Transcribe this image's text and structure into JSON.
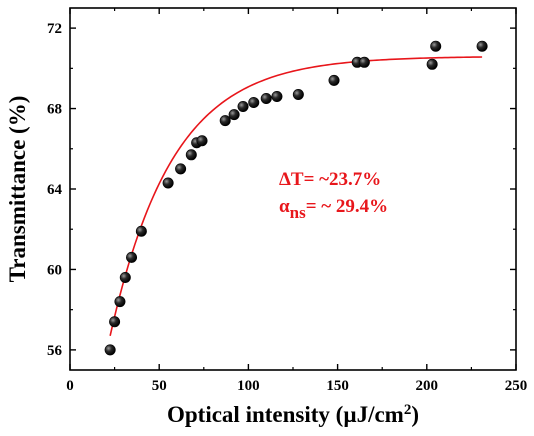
{
  "chart_data": {
    "type": "scatter",
    "xlabel": "Optical intensity (µJ/cm",
    "xlabel_sup": "2",
    "xlabel_close": ")",
    "ylabel": "Transmittance (%)",
    "xlim": [
      0,
      250
    ],
    "ylim": [
      55,
      73
    ],
    "x_ticks": [
      0,
      50,
      100,
      150,
      200,
      250
    ],
    "y_ticks": [
      56,
      60,
      64,
      68,
      72
    ],
    "x_tick_labels": [
      "0",
      "50",
      "100",
      "150",
      "200",
      "250"
    ],
    "y_tick_labels": [
      "56",
      "60",
      "64",
      "68",
      "72"
    ],
    "grid": false,
    "series": [
      {
        "kind": "points",
        "color": "#111111",
        "points": [
          [
            22.5,
            56.0
          ],
          [
            25.0,
            57.4
          ],
          [
            28.0,
            58.4
          ],
          [
            31.0,
            59.6
          ],
          [
            34.5,
            60.6
          ],
          [
            40.0,
            61.9
          ],
          [
            55.0,
            64.3
          ],
          [
            62.0,
            65.0
          ],
          [
            68.0,
            65.7
          ],
          [
            71.0,
            66.3
          ],
          [
            74.0,
            66.4
          ],
          [
            87.0,
            67.4
          ],
          [
            92.0,
            67.7
          ],
          [
            97.0,
            68.1
          ],
          [
            103.0,
            68.3
          ],
          [
            110.0,
            68.5
          ],
          [
            116.0,
            68.6
          ],
          [
            128.0,
            68.7
          ],
          [
            148.0,
            69.4
          ],
          [
            161.0,
            70.3
          ],
          [
            165.0,
            70.3
          ],
          [
            203.0,
            70.2
          ],
          [
            205.0,
            71.1
          ],
          [
            231.0,
            71.1
          ]
        ]
      },
      {
        "kind": "fit",
        "color": "#e8161b",
        "x_range": [
          22.5,
          231.0
        ],
        "fit_model": {
          "a": 70.6,
          "b": 13.9,
          "x0": 22.5,
          "t": 35.0
        }
      }
    ],
    "annotations": {
      "delta_t": "ΔT= ~23.7%",
      "alpha_symbol": "α",
      "alpha_sub": "ns",
      "alpha_value": "= ~ 29.4%",
      "color": "#e8161b"
    }
  }
}
